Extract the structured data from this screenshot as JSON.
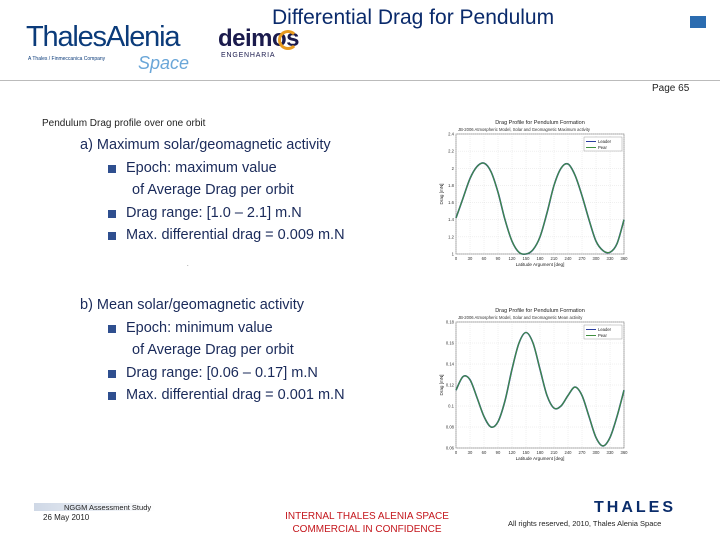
{
  "header": {
    "logo_thales_alenia": "ThalesAlenia",
    "logo_thales_alenia_sub": "A Thales / Finmeccanica Company",
    "logo_thales_alenia_space": "Space",
    "logo_deimos": "deimos",
    "logo_deimos_sub": "ENGENHARIA",
    "title": "Differential Drag for Pendulum",
    "page": "Page 65"
  },
  "body": {
    "heading": "Pendulum Drag profile over one orbit",
    "section_a": {
      "label": "a)  Maximum solar/geomagnetic activity",
      "bullet1": "Epoch: maximum value",
      "bullet1_cont": "of Average Drag per orbit",
      "bullet2": "Drag range:  [1.0 – 2.1] m.N",
      "bullet3": "Max. differential drag = 0.009 m.N"
    },
    "section_b": {
      "label": "b)  Mean solar/geomagnetic activity",
      "bullet1": "Epoch: minimum value",
      "bullet1_cont": "of Average Drag per orbit",
      "bullet2": "Drag range:  [0.06 – 0.17] m.N",
      "bullet3": "Max. differential drag = 0.001 m.N"
    },
    "dot": "."
  },
  "chart_data": [
    {
      "type": "line",
      "title": "Drag Profile for Pendulum Formation",
      "subtitle": "JB-2006 Atmospheric Model, Solar and Geomagnetic Maximum activity",
      "xlabel": "Latitude Argument [deg]",
      "ylabel": "Drag [mN]",
      "xlim": [
        0,
        360
      ],
      "ylim": [
        1.0,
        2.4
      ],
      "x_ticks": [
        "0",
        "30",
        "60",
        "90",
        "120",
        "150",
        "180",
        "210",
        "240",
        "270",
        "300",
        "330",
        "360"
      ],
      "y_ticks": [
        "1",
        "1.2",
        "1.4",
        "1.6",
        "1.8",
        "2",
        "2.2",
        "2.4"
      ],
      "legend": [
        "Leader",
        "Pear"
      ],
      "legend_position": "top-right",
      "grid": true,
      "series": [
        {
          "name": "Leader",
          "color": "#2b3fa0",
          "x": [
            0,
            15,
            30,
            45,
            60,
            75,
            90,
            105,
            120,
            135,
            150,
            165,
            180,
            195,
            210,
            225,
            240,
            255,
            270,
            285,
            300,
            315,
            330,
            345,
            360
          ],
          "y": [
            1.42,
            1.65,
            1.88,
            2.02,
            2.06,
            1.96,
            1.72,
            1.4,
            1.15,
            1.02,
            1.0,
            1.05,
            1.2,
            1.48,
            1.8,
            2.0,
            2.05,
            1.92,
            1.68,
            1.4,
            1.15,
            1.04,
            1.02,
            1.12,
            1.4
          ]
        },
        {
          "name": "Pear",
          "color": "#3f8f3f",
          "x": [
            0,
            15,
            30,
            45,
            60,
            75,
            90,
            105,
            120,
            135,
            150,
            165,
            180,
            195,
            210,
            225,
            240,
            255,
            270,
            285,
            300,
            315,
            330,
            345,
            360
          ],
          "y": [
            1.42,
            1.65,
            1.88,
            2.02,
            2.06,
            1.96,
            1.72,
            1.4,
            1.15,
            1.02,
            1.0,
            1.05,
            1.2,
            1.48,
            1.8,
            2.0,
            2.05,
            1.92,
            1.68,
            1.4,
            1.15,
            1.04,
            1.02,
            1.12,
            1.4
          ]
        }
      ]
    },
    {
      "type": "line",
      "title": "Drag Profile for Pendulum Formation",
      "subtitle": "JB-2006 Atmospheric Model, Solar and Geomagnetic Mean activity",
      "xlabel": "Latitude Argument [deg]",
      "ylabel": "Drag [mN]",
      "xlim": [
        0,
        360
      ],
      "ylim": [
        0.06,
        0.18
      ],
      "x_ticks": [
        "0",
        "30",
        "60",
        "90",
        "120",
        "150",
        "180",
        "210",
        "240",
        "270",
        "300",
        "330",
        "360"
      ],
      "y_ticks": [
        "0.06",
        "0.08",
        "0.1",
        "0.12",
        "0.14",
        "0.16",
        "0.18"
      ],
      "legend": [
        "Leader",
        "Pear"
      ],
      "legend_position": "top-right",
      "grid": true,
      "series": [
        {
          "name": "Leader",
          "color": "#2b3fa0",
          "x": [
            0,
            15,
            30,
            45,
            60,
            75,
            90,
            105,
            120,
            135,
            150,
            165,
            180,
            195,
            210,
            225,
            240,
            255,
            270,
            285,
            300,
            315,
            330,
            345,
            360
          ],
          "y": [
            0.115,
            0.128,
            0.125,
            0.108,
            0.09,
            0.08,
            0.085,
            0.105,
            0.135,
            0.16,
            0.17,
            0.16,
            0.135,
            0.11,
            0.098,
            0.1,
            0.11,
            0.118,
            0.11,
            0.09,
            0.07,
            0.062,
            0.07,
            0.09,
            0.115
          ]
        },
        {
          "name": "Pear",
          "color": "#3f8f3f",
          "x": [
            0,
            15,
            30,
            45,
            60,
            75,
            90,
            105,
            120,
            135,
            150,
            165,
            180,
            195,
            210,
            225,
            240,
            255,
            270,
            285,
            300,
            315,
            330,
            345,
            360
          ],
          "y": [
            0.115,
            0.128,
            0.125,
            0.108,
            0.09,
            0.08,
            0.085,
            0.105,
            0.135,
            0.16,
            0.17,
            0.16,
            0.135,
            0.11,
            0.098,
            0.1,
            0.11,
            0.118,
            0.11,
            0.09,
            0.07,
            0.062,
            0.07,
            0.09,
            0.115
          ]
        }
      ]
    }
  ],
  "footer": {
    "study": "NGGM Assessment Study",
    "date": "26 May 2010",
    "confidential_1": "INTERNAL THALES ALENIA SPACE",
    "confidential_2": "COMMERCIAL IN CONFIDENCE",
    "rights": "All rights reserved, 2010, Thales Alenia Space",
    "thales_logo": "THALES"
  }
}
